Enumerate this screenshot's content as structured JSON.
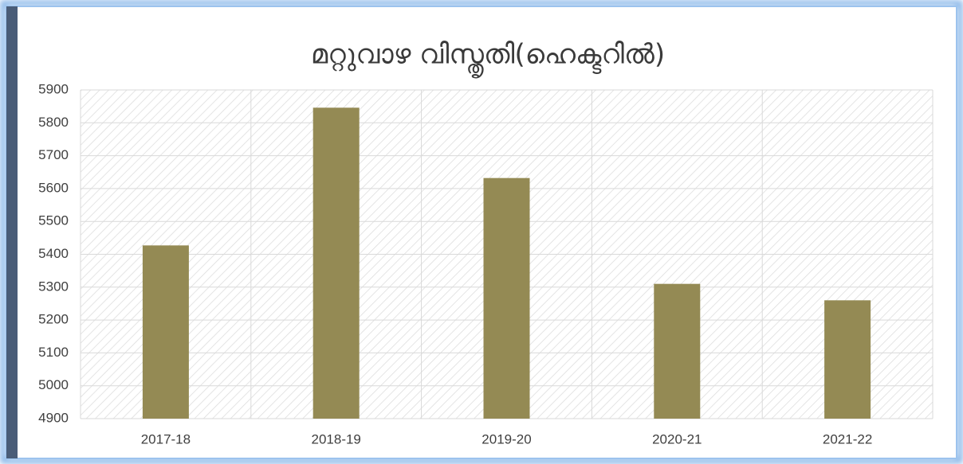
{
  "chart_data": {
    "type": "bar",
    "title": "മറ്റുവാഴ വിസ്തൃതി(ഹെക്ടറിൽ)",
    "categories": [
      "2017-18",
      "2018-19",
      "2019-20",
      "2020-21",
      "2021-22"
    ],
    "values": [
      5427,
      5846,
      5632,
      5310,
      5260
    ],
    "color": "#948a54",
    "ylim": [
      4900,
      5900
    ],
    "yticks": [
      4900,
      5000,
      5100,
      5200,
      5300,
      5400,
      5500,
      5600,
      5700,
      5800,
      5900
    ],
    "grid": true
  }
}
